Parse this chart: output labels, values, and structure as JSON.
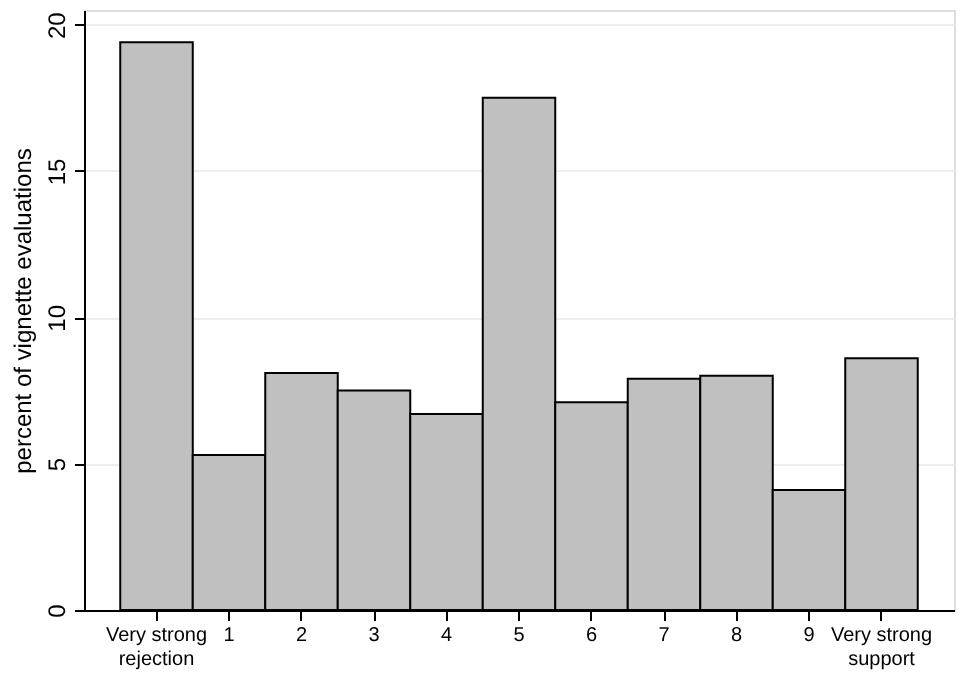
{
  "chart_data": {
    "type": "bar",
    "ylabel": "percent of vignette evaluations",
    "categories": [
      "Very strong rejection",
      "1",
      "2",
      "3",
      "4",
      "5",
      "6",
      "7",
      "8",
      "9",
      "Very strong support"
    ],
    "values": [
      19.4,
      5.3,
      8.1,
      7.5,
      6.7,
      17.5,
      7.1,
      7.9,
      8.0,
      4.1,
      8.6
    ],
    "color": "#c0c0c0",
    "ylim": [
      0,
      20.5
    ],
    "yticks": [
      0,
      5,
      10,
      15,
      20
    ],
    "grid": "y"
  }
}
